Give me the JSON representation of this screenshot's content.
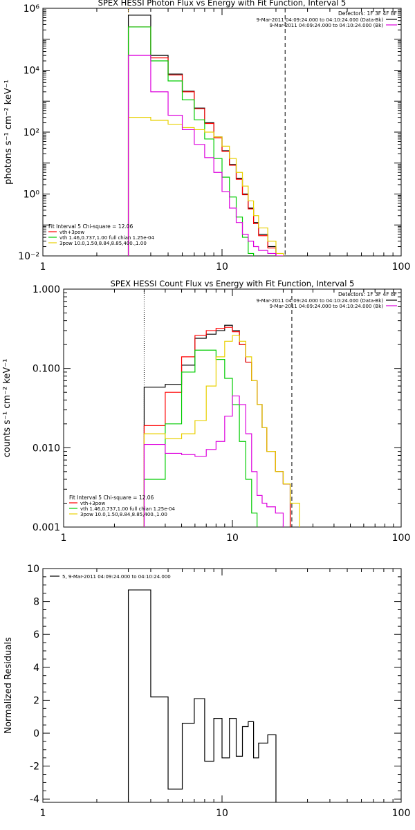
{
  "chart_data": [
    {
      "type": "line",
      "title": "SPEX HESSI Photon Flux vs Energy with Fit Function, Interval 5",
      "ylabel": "photons s⁻¹ cm⁻² keV⁻¹",
      "xlabel": "",
      "x_scale": "log",
      "y_scale": "log",
      "xlim": [
        1,
        100
      ],
      "ylim": [
        0.01,
        1000000
      ],
      "x_ticks": [
        1,
        10,
        100
      ],
      "x_tick_labels": [
        "1",
        "10",
        "100"
      ],
      "y_ticks": [
        0.01,
        1,
        100,
        10000,
        1000000
      ],
      "y_tick_labels": [
        "10⁻²",
        "10⁰",
        "10²",
        "10⁴",
        "10⁶"
      ],
      "bin_edges": [
        3,
        4,
        5,
        6,
        7,
        8,
        9,
        10,
        11,
        12,
        13,
        14,
        15,
        16,
        18,
        20,
        22,
        25
      ],
      "vlines": [
        {
          "x": 3,
          "color": "#e8a000",
          "style": "dotted"
        },
        {
          "x": 22.5,
          "color": "#000000",
          "style": "dashed"
        }
      ],
      "series": [
        {
          "name": "data",
          "color": "#000000",
          "values": [
            600000,
            30000,
            7500,
            2100,
            600,
            200,
            70,
            25,
            9,
            3.2,
            1.0,
            0.35,
            0.12,
            0.05,
            0.02,
            null,
            null
          ]
        },
        {
          "name": "vth+3pow",
          "color": "#ff0000",
          "values": [
            250000,
            25000,
            7000,
            2000,
            570,
            190,
            65,
            24,
            8.5,
            3.0,
            0.95,
            0.33,
            0.11,
            0.045,
            0.018,
            null,
            null
          ]
        },
        {
          "name": "vth 1.46,0.737,1.00  full chian 1.25e-04",
          "color": "#00cc00",
          "values": [
            250000,
            20000,
            4500,
            1100,
            250,
            60,
            14,
            3.5,
            0.8,
            0.18,
            0.04,
            0.012,
            null,
            null,
            null,
            null,
            null
          ]
        },
        {
          "name": "3pow 10.0,1.50,8.84,8.85,400.,1.00",
          "color": "#e8d000",
          "values": [
            300,
            240,
            180,
            140,
            120,
            100,
            70,
            35,
            14,
            5,
            1.8,
            0.6,
            0.2,
            0.08,
            0.03,
            0.012,
            null
          ]
        },
        {
          "name": "bk",
          "color": "#dd00dd",
          "values": [
            30000,
            2000,
            350,
            120,
            40,
            15,
            5,
            1.2,
            0.35,
            0.12,
            0.05,
            0.03,
            0.02,
            0.015,
            0.012,
            0.01,
            null
          ]
        }
      ],
      "legend": {
        "position": "top-right",
        "header": "Detectors: 1F 3F 4F 8F",
        "entries": [
          {
            "label": "9-Mar-2011 04:09:24.000 to 04:10:24.000 (Data-Bk)",
            "color": "#000000"
          },
          {
            "label": "9-Mar-2011 04:09:24.000 to 04:10:24.000 (Bk)",
            "color": "#dd00dd"
          }
        ]
      },
      "fit_legend": {
        "position": "bottom-left",
        "header": "Fit Interval  5   Chi-square = 12.06",
        "entries": [
          {
            "label": "vth+3pow",
            "color": "#ff0000"
          },
          {
            "label": "vth 1.46,0.737,1.00  full chian 1.25e-04",
            "color": "#00cc00"
          },
          {
            "label": "3pow 10.0,1.50,8.84,8.85,400.,1.00",
            "color": "#e8d000"
          }
        ]
      }
    },
    {
      "type": "line",
      "title": "SPEX HESSI Count Flux vs Energy with Fit Function, Interval 5",
      "ylabel": "counts s⁻¹ cm⁻² keV⁻¹",
      "xlabel": "",
      "x_scale": "log",
      "y_scale": "log",
      "xlim": [
        1,
        100
      ],
      "ylim": [
        0.001,
        1.0
      ],
      "x_ticks": [
        1,
        10,
        100
      ],
      "x_tick_labels": [
        "1",
        "10",
        "100"
      ],
      "y_ticks": [
        0.001,
        0.01,
        0.1,
        1.0
      ],
      "y_tick_labels": [
        "0.001",
        "0.010",
        "0.100",
        "1.000"
      ],
      "bin_edges": [
        3,
        4,
        5,
        6,
        7,
        8,
        9,
        10,
        11,
        12,
        13,
        14,
        15,
        16,
        18,
        20,
        22,
        25,
        28
      ],
      "vlines": [
        {
          "x": 3,
          "color": "#000000",
          "style": "dotted"
        },
        {
          "x": 22.5,
          "color": "#000000",
          "style": "dashed"
        }
      ],
      "series": [
        {
          "name": "data",
          "color": "#000000",
          "values": [
            0.058,
            0.063,
            0.11,
            0.24,
            0.27,
            0.3,
            0.35,
            0.3,
            0.2,
            0.12,
            0.07,
            0.035,
            0.018,
            0.009,
            0.005,
            0.0035,
            null,
            null
          ]
        },
        {
          "name": "vth+3pow",
          "color": "#ff0000",
          "values": [
            0.019,
            0.05,
            0.14,
            0.26,
            0.3,
            0.32,
            0.33,
            0.29,
            0.2,
            0.12,
            0.07,
            0.035,
            0.018,
            0.009,
            0.005,
            0.0035,
            null,
            null
          ]
        },
        {
          "name": "vth 1.46,0.737,1.00  full chian 1.25e-04",
          "color": "#00cc00",
          "values": [
            0.004,
            0.02,
            0.09,
            0.17,
            0.17,
            0.13,
            0.075,
            0.035,
            0.012,
            0.004,
            0.0015,
            null,
            null,
            null,
            null,
            null,
            null,
            null
          ]
        },
        {
          "name": "3pow 10.0,1.50,8.84,8.85,400.,1.00",
          "color": "#e8d000",
          "values": [
            0.015,
            0.013,
            0.015,
            0.022,
            0.06,
            0.14,
            0.22,
            0.26,
            0.22,
            0.14,
            0.07,
            0.035,
            0.018,
            0.009,
            0.005,
            0.0035,
            0.002,
            null
          ]
        },
        {
          "name": "bk",
          "color": "#dd00dd",
          "values": [
            0.011,
            0.0085,
            0.0082,
            0.0078,
            0.0095,
            0.012,
            0.025,
            0.045,
            0.035,
            0.015,
            0.005,
            0.0025,
            0.002,
            0.0018,
            0.0015,
            null,
            null,
            null
          ]
        }
      ],
      "legend": {
        "position": "top-right",
        "header": "Detectors: 1F 3F 4F 8F",
        "entries": [
          {
            "label": "9-Mar-2011 04:09:24.000 to 04:10:24.000 (Data-Bk)",
            "color": "#000000"
          },
          {
            "label": "9-Mar-2011 04:09:24.000 to 04:10:24.000 (Bk)",
            "color": "#dd00dd"
          }
        ]
      },
      "fit_legend": {
        "position": "bottom-left",
        "header": "Fit Interval  5   Chi-square = 12.06",
        "entries": [
          {
            "label": "vth+3pow",
            "color": "#ff0000"
          },
          {
            "label": "vth 1.46,0.737,1.00  full chian 1.25e-04",
            "color": "#00cc00"
          },
          {
            "label": "3pow 10.0,1.50,8.84,8.85,400.,1.00",
            "color": "#e8d000"
          }
        ]
      }
    },
    {
      "type": "line",
      "title": "",
      "ylabel": "Normalized Residuals",
      "xlabel": "",
      "x_scale": "log",
      "y_scale": "linear",
      "xlim": [
        1,
        100
      ],
      "ylim": [
        -4.2,
        10
      ],
      "x_ticks": [
        1,
        10,
        100
      ],
      "x_tick_labels": [
        "1",
        "10",
        "100"
      ],
      "y_ticks": [
        -4,
        -2,
        0,
        2,
        4,
        6,
        8,
        10
      ],
      "y_tick_labels": [
        "-4",
        "-2",
        "0",
        "2",
        "4",
        "6",
        "8",
        "10"
      ],
      "bin_edges": [
        3,
        4,
        5,
        6,
        7,
        8,
        9,
        10,
        11,
        12,
        13,
        14,
        15,
        16,
        18,
        20,
        22
      ],
      "vlines": [],
      "series": [
        {
          "name": "5",
          "color": "#000000",
          "values": [
            8.7,
            2.2,
            -3.4,
            0.6,
            2.1,
            -1.7,
            0.9,
            -1.5,
            0.9,
            -1.4,
            0.4,
            0.7,
            -1.5,
            -0.6,
            -0.1,
            null
          ]
        }
      ],
      "legend": {
        "position": "top-left",
        "header": "",
        "entries": [
          {
            "label": "5, 9-Mar-2011 04:09:24.000 to 04:10:24.000",
            "color": "#000000"
          }
        ]
      }
    }
  ]
}
